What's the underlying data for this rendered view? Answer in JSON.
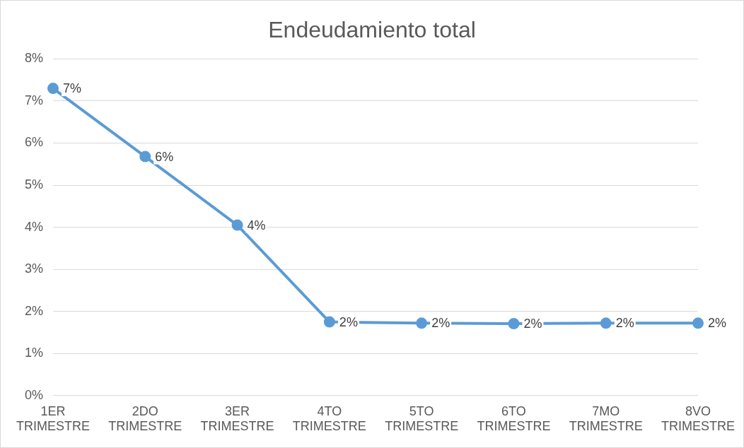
{
  "chart_data": {
    "type": "line",
    "title": "Endeudamiento total",
    "categories": [
      "1ER TRIMESTRE",
      "2DO TRIMESTRE",
      "3ER TRIMESTRE",
      "4TO TRIMESTRE",
      "5TO TRIMESTRE",
      "6TO TRIMESTRE",
      "7MO TRIMESTRE",
      "8VO TRIMESTRE"
    ],
    "series": [
      {
        "color": "#5b9bd5",
        "values": [
          7.3,
          5.68,
          4.05,
          1.75,
          1.72,
          1.71,
          1.72,
          1.72
        ],
        "value_labels": [
          "7%",
          "6%",
          "4%",
          "2%",
          "2%",
          "2%",
          "2%",
          "2%"
        ]
      }
    ],
    "ylim": [
      0,
      8
    ],
    "yticks": [
      {
        "value": 0,
        "label": "0%"
      },
      {
        "value": 1,
        "label": "1%"
      },
      {
        "value": 2,
        "label": "2%"
      },
      {
        "value": 3,
        "label": "3%"
      },
      {
        "value": 4,
        "label": "4%"
      },
      {
        "value": 5,
        "label": "5%"
      },
      {
        "value": 6,
        "label": "6%"
      },
      {
        "value": 7,
        "label": "7%"
      },
      {
        "value": 8,
        "label": "8%"
      }
    ],
    "grid": "y",
    "marker": "circle",
    "line_style": "solid",
    "legend": false
  }
}
